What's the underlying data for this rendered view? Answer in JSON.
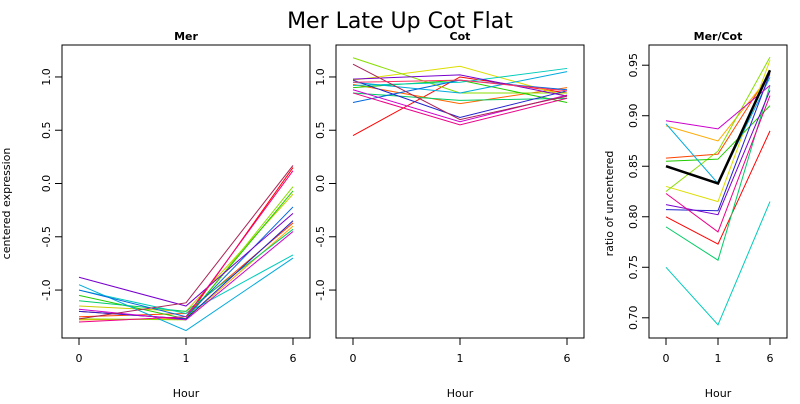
{
  "title": "Mer Late Up Cot Flat",
  "chart_data": [
    {
      "type": "line",
      "title": "Mer",
      "xlabel": "Hour",
      "ylabel": "centered expression",
      "categories": [
        "0",
        "1",
        "6"
      ],
      "ylim": [
        -1.45,
        1.3
      ],
      "yticks": [
        "1.0",
        "0.5",
        "0.0",
        "-0.5",
        "-1.0"
      ],
      "grid": false,
      "series": [
        {
          "color": "#ff0000",
          "values": [
            -1.2,
            -1.27,
            0.15
          ]
        },
        {
          "color": "#ff4400",
          "values": [
            -1.25,
            -1.22,
            -0.37
          ]
        },
        {
          "color": "#ffaa00",
          "values": [
            -1.28,
            -1.27,
            -0.4
          ]
        },
        {
          "color": "#cccc00",
          "values": [
            -1.15,
            -1.2,
            -0.1
          ]
        },
        {
          "color": "#88dd00",
          "values": [
            -1.27,
            -1.28,
            -0.03
          ]
        },
        {
          "color": "#22cc00",
          "values": [
            -1.05,
            -1.27,
            -0.07
          ]
        },
        {
          "color": "#00cc66",
          "values": [
            -1.1,
            -1.2,
            -0.43
          ]
        },
        {
          "color": "#00ccbb",
          "values": [
            -1.0,
            -1.22,
            -0.67
          ]
        },
        {
          "color": "#00aadd",
          "values": [
            -0.95,
            -1.38,
            -0.7
          ]
        },
        {
          "color": "#0066dd",
          "values": [
            -1.0,
            -1.25,
            -0.22
          ]
        },
        {
          "color": "#2222cc",
          "values": [
            -1.2,
            -1.27,
            -0.35
          ]
        },
        {
          "color": "#7700cc",
          "values": [
            -0.88,
            -1.15,
            -0.28
          ]
        },
        {
          "color": "#cc00cc",
          "values": [
            -1.18,
            -1.28,
            -0.45
          ]
        },
        {
          "color": "#ee0088",
          "values": [
            -1.3,
            -1.25,
            0.12
          ]
        },
        {
          "color": "#aa2255",
          "values": [
            -1.27,
            -1.12,
            0.17
          ]
        }
      ]
    },
    {
      "type": "line",
      "title": "Cot",
      "xlabel": "Hour",
      "ylabel": "",
      "categories": [
        "0",
        "1",
        "6"
      ],
      "ylim": [
        -1.45,
        1.3
      ],
      "yticks": [
        "1.0",
        "0.5",
        "0.0",
        "-0.5",
        "-1.0"
      ],
      "grid": false,
      "series": [
        {
          "color": "#ff0000",
          "values": [
            0.45,
            1.0,
            0.85
          ]
        },
        {
          "color": "#ff6600",
          "values": [
            0.93,
            0.75,
            0.9
          ]
        },
        {
          "color": "#dddd00",
          "values": [
            0.97,
            1.1,
            0.82
          ]
        },
        {
          "color": "#88dd00",
          "values": [
            1.18,
            0.85,
            0.85
          ]
        },
        {
          "color": "#22cc00",
          "values": [
            0.9,
            0.97,
            0.76
          ]
        },
        {
          "color": "#00cc66",
          "values": [
            0.85,
            0.78,
            0.8
          ]
        },
        {
          "color": "#00ccbb",
          "values": [
            0.92,
            0.95,
            1.08
          ]
        },
        {
          "color": "#00aadd",
          "values": [
            0.95,
            0.85,
            1.05
          ]
        },
        {
          "color": "#0066dd",
          "values": [
            0.76,
            0.97,
            0.88
          ]
        },
        {
          "color": "#2222cc",
          "values": [
            0.97,
            0.62,
            0.87
          ]
        },
        {
          "color": "#7700cc",
          "values": [
            0.98,
            1.02,
            0.82
          ]
        },
        {
          "color": "#cc00cc",
          "values": [
            0.88,
            0.58,
            0.83
          ]
        },
        {
          "color": "#ee0088",
          "values": [
            0.85,
            0.55,
            0.8
          ]
        },
        {
          "color": "#aa2255",
          "values": [
            1.12,
            0.6,
            0.82
          ]
        },
        {
          "color": "#ff3366",
          "values": [
            0.95,
            0.97,
            0.87
          ]
        }
      ]
    },
    {
      "type": "line",
      "title": "Mer/Cot",
      "xlabel": "Hour",
      "ylabel": "ratio of uncentered",
      "categories": [
        "0",
        "1",
        "6"
      ],
      "ylim": [
        0.68,
        0.97
      ],
      "yticks": [
        "0.95",
        "0.90",
        "0.85",
        "0.80",
        "0.75",
        "0.70"
      ],
      "grid": false,
      "series": [
        {
          "color": "#ff0000",
          "values": [
            0.8,
            0.773,
            0.885
          ]
        },
        {
          "color": "#ff4400",
          "values": [
            0.858,
            0.862,
            0.943
          ]
        },
        {
          "color": "#ffaa00",
          "values": [
            0.89,
            0.875,
            0.94
          ]
        },
        {
          "color": "#dddd00",
          "values": [
            0.83,
            0.815,
            0.955
          ]
        },
        {
          "color": "#88dd00",
          "values": [
            0.825,
            0.865,
            0.958
          ]
        },
        {
          "color": "#22cc00",
          "values": [
            0.855,
            0.857,
            0.91
          ]
        },
        {
          "color": "#00cc66",
          "values": [
            0.79,
            0.757,
            0.93
          ]
        },
        {
          "color": "#00ccbb",
          "values": [
            0.75,
            0.693,
            0.815
          ]
        },
        {
          "color": "#00aadd",
          "values": [
            0.892,
            0.833,
            0.938
          ]
        },
        {
          "color": "#2222cc",
          "values": [
            0.807,
            0.806,
            0.942
          ]
        },
        {
          "color": "#7700cc",
          "values": [
            0.812,
            0.802,
            0.925
          ]
        },
        {
          "color": "#cc00cc",
          "values": [
            0.895,
            0.887,
            0.93
          ]
        },
        {
          "color": "#ee0088",
          "values": [
            0.823,
            0.785,
            0.92
          ]
        },
        {
          "color": "#000000",
          "values": [
            0.85,
            0.833,
            0.945
          ],
          "bold": true
        }
      ]
    }
  ]
}
